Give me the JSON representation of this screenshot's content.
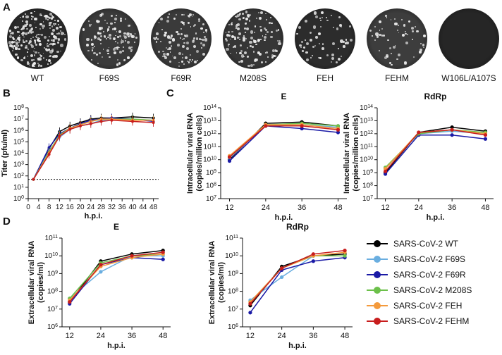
{
  "panels": {
    "a": "A",
    "b": "B",
    "c": "C",
    "d": "D"
  },
  "plates": [
    {
      "label": "WT",
      "colonies": 230,
      "bg": "#2a2a2a"
    },
    {
      "label": "F69S",
      "colonies": 120,
      "bg": "#3a3a3a"
    },
    {
      "label": "F69R",
      "colonies": 110,
      "bg": "#3a3a3a"
    },
    {
      "label": "M208S",
      "colonies": 130,
      "bg": "#363636"
    },
    {
      "label": "FEH",
      "colonies": 60,
      "bg": "#2c2c2c"
    },
    {
      "label": "FEHM",
      "colonies": 55,
      "bg": "#3d3d3d"
    },
    {
      "label": "W106L/A107S",
      "colonies": 0,
      "bg": "#262626"
    }
  ],
  "colors": {
    "SARS-CoV-2 WT": "#000000",
    "SARS-CoV-2 F69S": "#6aaee0",
    "SARS-CoV-2 F69R": "#1a1aa6",
    "SARS-CoV-2 M208S": "#6cc04a",
    "SARS-CoV-2 FEH": "#f49a3c",
    "SARS-CoV-2 FEHM": "#c81d1d"
  },
  "legend": [
    "SARS-CoV-2 WT",
    "SARS-CoV-2 F69S",
    "SARS-CoV-2 F69R",
    "SARS-CoV-2 M208S",
    "SARS-CoV-2 FEH",
    "SARS-CoV-2 FEHM"
  ],
  "chart_data": [
    {
      "id": "B",
      "type": "line",
      "title": "",
      "xlabel": "h.p.i.",
      "ylabel": "Titer (pfu/ml)",
      "xticks": [
        0,
        4,
        8,
        12,
        16,
        20,
        24,
        28,
        32,
        36,
        40,
        44,
        48
      ],
      "xlim": [
        0,
        50
      ],
      "ylog": true,
      "ylim": [
        0,
        8
      ],
      "detection_limit": 1.7,
      "series": [
        {
          "name": "SARS-CoV-2 WT",
          "x": [
            2,
            8,
            12,
            16,
            20,
            24,
            28,
            32,
            40,
            48
          ],
          "y": [
            1.7,
            4.4,
            5.9,
            6.4,
            6.7,
            7.0,
            7.1,
            7.1,
            7.2,
            7.1
          ]
        },
        {
          "name": "SARS-CoV-2 F69S",
          "x": [
            2,
            8,
            12,
            16,
            20,
            24,
            28,
            32,
            40,
            48
          ],
          "y": [
            1.7,
            4.2,
            5.4,
            6.1,
            6.4,
            6.6,
            6.9,
            7.0,
            7.0,
            6.9
          ]
        },
        {
          "name": "SARS-CoV-2 F69R",
          "x": [
            2,
            8,
            12,
            16,
            20,
            24,
            28,
            32,
            40,
            48
          ],
          "y": [
            1.7,
            4.5,
            5.7,
            6.2,
            6.6,
            6.9,
            7.0,
            7.1,
            7.0,
            6.8
          ]
        },
        {
          "name": "SARS-CoV-2 M208S",
          "x": [
            2,
            8,
            12,
            16,
            20,
            24,
            28,
            32,
            40,
            48
          ],
          "y": [
            1.7,
            4.1,
            5.6,
            6.2,
            6.5,
            6.8,
            7.0,
            7.0,
            7.0,
            6.9
          ]
        },
        {
          "name": "SARS-CoV-2 FEH",
          "x": [
            2,
            8,
            12,
            16,
            20,
            24,
            28,
            32,
            40,
            48
          ],
          "y": [
            1.7,
            4.0,
            5.5,
            6.2,
            6.5,
            6.8,
            7.0,
            7.0,
            6.9,
            6.9
          ]
        },
        {
          "name": "SARS-CoV-2 FEHM",
          "x": [
            2,
            8,
            12,
            16,
            20,
            24,
            28,
            32,
            40,
            48
          ],
          "y": [
            1.7,
            3.9,
            5.5,
            6.1,
            6.4,
            6.6,
            6.8,
            6.9,
            6.8,
            6.7
          ]
        }
      ]
    },
    {
      "id": "C-E",
      "type": "line",
      "title": "E",
      "xlabel": "h.p.i.",
      "ylabel": [
        "Intracellular viral RNA",
        "(copies/million cells)"
      ],
      "categories": [
        "12",
        "24",
        "36",
        "48"
      ],
      "ylog": true,
      "ylim": [
        7,
        14
      ],
      "series": [
        {
          "name": "SARS-CoV-2 WT",
          "values": [
            10.0,
            12.8,
            12.9,
            12.6
          ]
        },
        {
          "name": "SARS-CoV-2 F69S",
          "values": [
            10.1,
            12.7,
            12.7,
            12.5
          ]
        },
        {
          "name": "SARS-CoV-2 F69R",
          "values": [
            9.9,
            12.6,
            12.4,
            12.1
          ]
        },
        {
          "name": "SARS-CoV-2 M208S",
          "values": [
            10.2,
            12.7,
            12.8,
            12.6
          ]
        },
        {
          "name": "SARS-CoV-2 FEH",
          "values": [
            10.3,
            12.7,
            12.7,
            12.4
          ]
        },
        {
          "name": "SARS-CoV-2 FEHM",
          "values": [
            10.2,
            12.6,
            12.6,
            12.3
          ]
        }
      ]
    },
    {
      "id": "C-RdRp",
      "type": "line",
      "title": "RdRp",
      "xlabel": "h.p.i.",
      "ylabel": [
        "Intracellular viral RNA",
        "(copies/million cells)"
      ],
      "categories": [
        "12",
        "24",
        "36",
        "48"
      ],
      "ylog": true,
      "ylim": [
        7,
        14
      ],
      "series": [
        {
          "name": "SARS-CoV-2 WT",
          "values": [
            9.0,
            12.1,
            12.5,
            12.2
          ]
        },
        {
          "name": "SARS-CoV-2 F69S",
          "values": [
            9.3,
            12.0,
            12.2,
            12.0
          ]
        },
        {
          "name": "SARS-CoV-2 F69R",
          "values": [
            8.9,
            11.9,
            11.9,
            11.6
          ]
        },
        {
          "name": "SARS-CoV-2 M208S",
          "values": [
            9.4,
            12.0,
            12.3,
            12.1
          ]
        },
        {
          "name": "SARS-CoV-2 FEH",
          "values": [
            9.3,
            12.1,
            12.3,
            12.0
          ]
        },
        {
          "name": "SARS-CoV-2 FEHM",
          "values": [
            9.1,
            12.1,
            12.3,
            11.9
          ]
        }
      ]
    },
    {
      "id": "D-E",
      "type": "line",
      "title": "E",
      "xlabel": "h.p.i.",
      "ylabel": [
        "Extracellular viral RNA",
        "(copies/ml)"
      ],
      "categories": [
        "12",
        "24",
        "36",
        "48"
      ],
      "ylog": true,
      "ylim": [
        6,
        11
      ],
      "series": [
        {
          "name": "SARS-CoV-2 WT",
          "values": [
            7.4,
            9.7,
            10.1,
            10.3
          ]
        },
        {
          "name": "SARS-CoV-2 F69S",
          "values": [
            7.6,
            9.1,
            10.0,
            10.0
          ]
        },
        {
          "name": "SARS-CoV-2 F69R",
          "values": [
            7.3,
            9.5,
            9.9,
            9.8
          ]
        },
        {
          "name": "SARS-CoV-2 M208S",
          "values": [
            7.6,
            9.6,
            10.0,
            10.1
          ]
        },
        {
          "name": "SARS-CoV-2 FEH",
          "values": [
            7.5,
            9.4,
            9.9,
            10.1
          ]
        },
        {
          "name": "SARS-CoV-2 FEHM",
          "values": [
            7.4,
            9.5,
            10.0,
            10.2
          ]
        }
      ]
    },
    {
      "id": "D-RdRp",
      "type": "line",
      "title": "RdRp",
      "xlabel": "h.p.i.",
      "ylabel": [
        "Extracellular viral RNA",
        "(copies/ml)"
      ],
      "categories": [
        "12",
        "24",
        "36",
        "48"
      ],
      "ylog": true,
      "ylim": [
        6,
        11
      ],
      "series": [
        {
          "name": "SARS-CoV-2 WT",
          "values": [
            7.2,
            9.4,
            10.0,
            10.1
          ]
        },
        {
          "name": "SARS-CoV-2 F69S",
          "values": [
            7.5,
            8.8,
            10.0,
            10.0
          ]
        },
        {
          "name": "SARS-CoV-2 F69R",
          "values": [
            6.8,
            9.2,
            9.7,
            9.9
          ]
        },
        {
          "name": "SARS-CoV-2 M208S",
          "values": [
            7.4,
            9.3,
            10.0,
            10.0
          ]
        },
        {
          "name": "SARS-CoV-2 FEH",
          "values": [
            7.4,
            9.3,
            10.0,
            10.2
          ]
        },
        {
          "name": "SARS-CoV-2 FEHM",
          "values": [
            7.3,
            9.3,
            10.1,
            10.3
          ]
        }
      ]
    }
  ]
}
